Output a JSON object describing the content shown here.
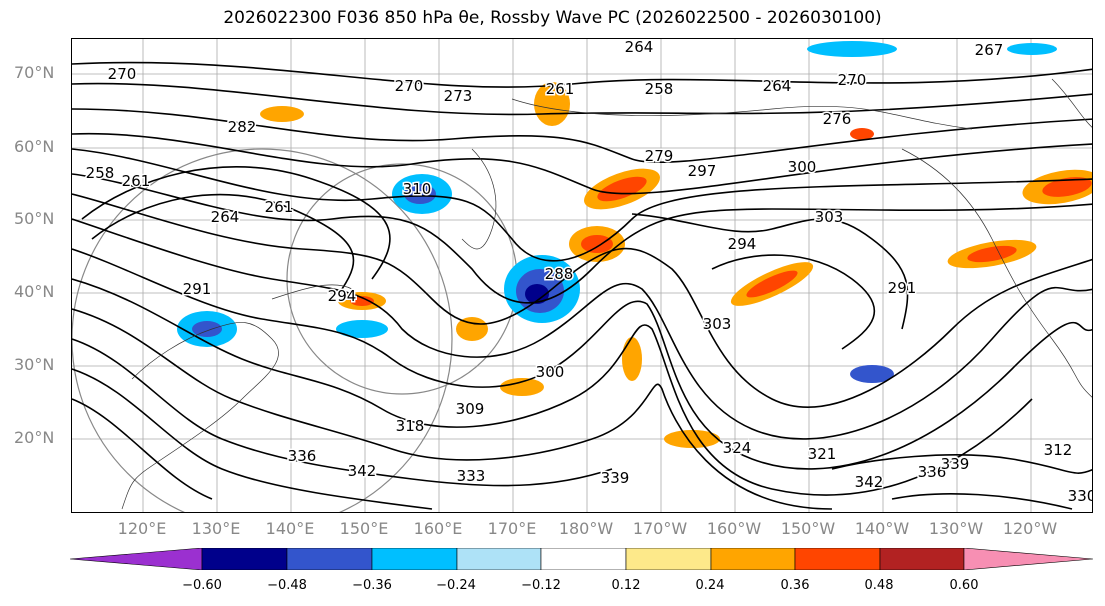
{
  "title": "2026022300 F036 850 hPa θe, Rossby Wave PC (2026022500 - 2026030100)",
  "lat_labels": [
    "70°N",
    "60°N",
    "50°N",
    "40°N",
    "30°N",
    "20°N"
  ],
  "lon_labels": [
    "120°E",
    "130°E",
    "140°E",
    "150°E",
    "160°E",
    "170°E",
    "180°W",
    "170°W",
    "160°W",
    "150°W",
    "140°W",
    "130°W",
    "120°W"
  ],
  "contour_labels": [
    "264",
    "267",
    "270",
    "270",
    "273",
    "261",
    "258",
    "264",
    "270",
    "276",
    "282",
    "279",
    "297",
    "300",
    "303",
    "294",
    "258",
    "261",
    "264",
    "261",
    "291",
    "310",
    "288",
    "294",
    "291",
    "303",
    "300",
    "309",
    "318",
    "324",
    "321",
    "312",
    "336",
    "342",
    "333",
    "339",
    "342",
    "336",
    "339",
    "330"
  ],
  "colorbar": {
    "ticks": [
      "−0.60",
      "−0.48",
      "−0.36",
      "−0.24",
      "−0.12",
      "0.12",
      "0.24",
      "0.36",
      "0.48",
      "0.60"
    ],
    "colors": [
      "#9b30d0",
      "#00008b",
      "#3355cc",
      "#00bfff",
      "#aee2f7",
      "#ffffff",
      "#fde98a",
      "#ffa500",
      "#ff4500",
      "#b22222",
      "#f78fb3"
    ]
  }
}
